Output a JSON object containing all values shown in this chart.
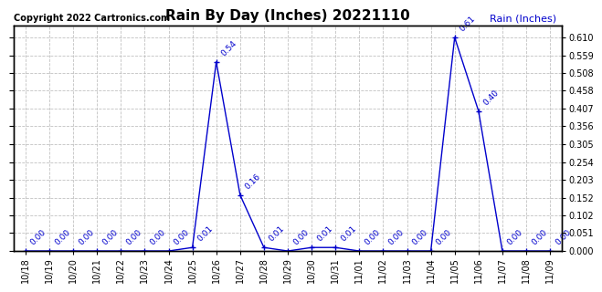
{
  "title": "Rain By Day (Inches) 20221110",
  "copyright": "Copyright 2022 Cartronics.com",
  "legend_label": "Rain (Inches)",
  "line_color": "#0000cc",
  "background_color": "#ffffff",
  "grid_color": "#bbbbbb",
  "label_color": "#0000cc",
  "dates": [
    "10/18",
    "10/19",
    "10/20",
    "10/21",
    "10/22",
    "10/23",
    "10/24",
    "10/25",
    "10/26",
    "10/27",
    "10/28",
    "10/29",
    "10/30",
    "10/31",
    "11/01",
    "11/02",
    "11/03",
    "11/04",
    "11/05",
    "11/06",
    "11/07",
    "11/08",
    "11/09"
  ],
  "values": [
    0.0,
    0.0,
    0.0,
    0.0,
    0.0,
    0.0,
    0.0,
    0.01,
    0.54,
    0.16,
    0.01,
    0.0,
    0.01,
    0.01,
    0.0,
    0.0,
    0.0,
    0.0,
    0.61,
    0.4,
    0.0,
    0.0,
    0.0
  ],
  "ylim": [
    0.0,
    0.645
  ],
  "yticks": [
    0.0,
    0.051,
    0.102,
    0.152,
    0.203,
    0.254,
    0.305,
    0.356,
    0.407,
    0.458,
    0.508,
    0.559,
    0.61
  ],
  "title_fontsize": 11,
  "label_fontsize": 6.5,
  "tick_fontsize": 7,
  "copyright_fontsize": 7
}
